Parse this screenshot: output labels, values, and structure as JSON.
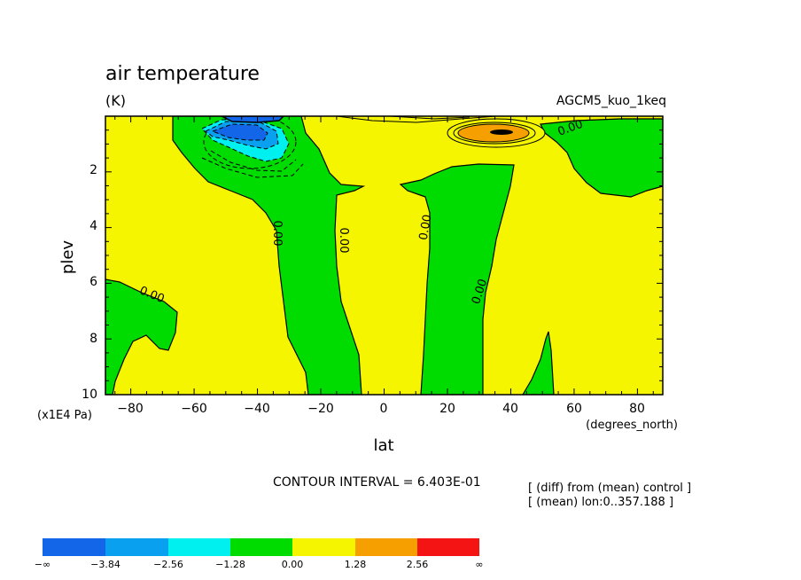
{
  "chart_data": {
    "type": "heatmap",
    "title": "air temperature",
    "units": "(K)",
    "dataset": "AGCM5_kuo_1keq",
    "xlabel": "lat",
    "x_units": "(degrees_north)",
    "ylabel": "plev",
    "y_units": "(x1E4 Pa)",
    "xlim": [
      -88,
      88
    ],
    "ylim": [
      10,
      0
    ],
    "x_ticks": [
      -80,
      -60,
      -40,
      -20,
      0,
      20,
      40,
      60,
      80
    ],
    "x_tick_labels": [
      "−80",
      "−60",
      "−40",
      "−20",
      "0",
      "20",
      "40",
      "60",
      "80"
    ],
    "y_ticks": [
      2,
      4,
      6,
      8,
      10
    ],
    "y_tick_labels": [
      "2",
      "4",
      "6",
      "8",
      "10"
    ],
    "contour_interval": "CONTOUR INTERVAL = 6.403E-01",
    "notes": [
      "[ (diff) from (mean) control ]",
      "[ (mean) lon:0..357.188 ]"
    ],
    "contour_labels": [
      {
        "text": "0.00",
        "lat": -73,
        "plev": 6.5
      },
      {
        "text": "0.00",
        "lat": -35,
        "plev": 4.7
      },
      {
        "text": "0.00",
        "lat": -14,
        "plev": 5.0
      },
      {
        "text": "0.00",
        "lat": 12,
        "plev": 4.3
      },
      {
        "text": "0.00",
        "lat": 31,
        "plev": 6.6
      },
      {
        "text": "0.00",
        "lat": 61,
        "plev": 0.45
      }
    ],
    "legend": {
      "colors": [
        "#1466e8",
        "#0aa0f0",
        "#00f0f0",
        "#00dc00",
        "#f5f500",
        "#f5a000",
        "#f51414"
      ],
      "boundary_labels": [
        "−∞",
        "−3.84",
        "−2.56",
        "−1.28",
        "0.00",
        "1.28",
        "2.56",
        "∞"
      ]
    },
    "regions": {
      "positive_color": "#f5f500",
      "negative_color": "#00dc00"
    }
  }
}
